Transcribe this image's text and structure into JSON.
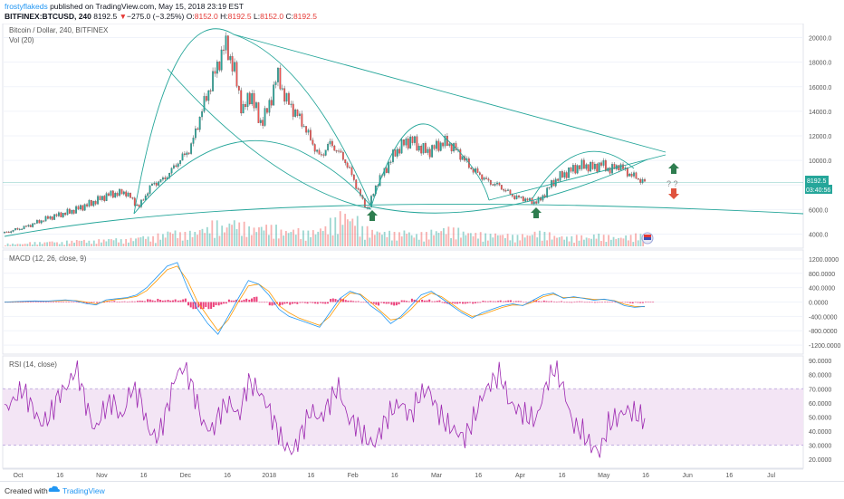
{
  "header": {
    "author": "frostyflakeds",
    "published": " published on TradingView.com, May 15, 2018 23:19 EST",
    "symbol": "BITFINEX:BTCUSD, 240",
    "price": "8192.5",
    "change_arrow": "▼",
    "change": "−275.0 (−3.25%)",
    "ohlc": [
      {
        "label": "O:",
        "value": "8152.0"
      },
      {
        "label": "H:",
        "value": "8192.5"
      },
      {
        "label": "L:",
        "value": "8152.0"
      },
      {
        "label": "C:",
        "value": "8192.5"
      }
    ]
  },
  "footer": {
    "created_with": "Created with",
    "brand": "TradingView"
  },
  "colors": {
    "up": "#26a69a",
    "down": "#ef5350",
    "trendline": "#26a69a",
    "macd": "#2196f3",
    "signal": "#ff9800",
    "histogram": "#e91e63",
    "rsi": "#9c27b0",
    "rsi_band": "#f3e5f5",
    "arrow_up": "#2e7d4f",
    "arrow_down": "#e0533e"
  },
  "chart_data": [
    {
      "type": "candlestick",
      "title": "Bitcoin / Dollar, 240, BITFINEX",
      "indicator": "Vol (20)",
      "ylim": [
        3000,
        21000
      ],
      "y_ticks": [
        "4000.0",
        "6000.0",
        "8000.0",
        "10000.0",
        "12000.0",
        "14000.0",
        "16000.0",
        "18000.0",
        "20000.0"
      ],
      "last_price": "8192.5",
      "countdown": "03:40:56",
      "annotation": "? ?",
      "price_path": [
        {
          "t": 0,
          "p": 4100
        },
        {
          "t": 5,
          "p": 4600
        },
        {
          "t": 10,
          "p": 5300
        },
        {
          "t": 15,
          "p": 5800
        },
        {
          "t": 20,
          "p": 6500
        },
        {
          "t": 24,
          "p": 7200
        },
        {
          "t": 28,
          "p": 7400
        },
        {
          "t": 31,
          "p": 6200
        },
        {
          "t": 34,
          "p": 8000
        },
        {
          "t": 37,
          "p": 8500
        },
        {
          "t": 40,
          "p": 9800
        },
        {
          "t": 43,
          "p": 11000
        },
        {
          "t": 46,
          "p": 14500
        },
        {
          "t": 48,
          "p": 16500
        },
        {
          "t": 51,
          "p": 19500
        },
        {
          "t": 53,
          "p": 17500
        },
        {
          "t": 55,
          "p": 14000
        },
        {
          "t": 57,
          "p": 15500
        },
        {
          "t": 59,
          "p": 13000
        },
        {
          "t": 61,
          "p": 14200
        },
        {
          "t": 63,
          "p": 17000
        },
        {
          "t": 65,
          "p": 15000
        },
        {
          "t": 67,
          "p": 14000
        },
        {
          "t": 69,
          "p": 13000
        },
        {
          "t": 71,
          "p": 11500
        },
        {
          "t": 73,
          "p": 10200
        },
        {
          "t": 75,
          "p": 11400
        },
        {
          "t": 77,
          "p": 10800
        },
        {
          "t": 79,
          "p": 9800
        },
        {
          "t": 81,
          "p": 8200
        },
        {
          "t": 83,
          "p": 6500
        },
        {
          "t": 84,
          "p": 6000
        },
        {
          "t": 86,
          "p": 8100
        },
        {
          "t": 88,
          "p": 9200
        },
        {
          "t": 90,
          "p": 10500
        },
        {
          "t": 92,
          "p": 11300
        },
        {
          "t": 94,
          "p": 11700
        },
        {
          "t": 96,
          "p": 11000
        },
        {
          "t": 98,
          "p": 10700
        },
        {
          "t": 100,
          "p": 11200
        },
        {
          "t": 102,
          "p": 11500
        },
        {
          "t": 104,
          "p": 11000
        },
        {
          "t": 106,
          "p": 10200
        },
        {
          "t": 108,
          "p": 9300
        },
        {
          "t": 110,
          "p": 8800
        },
        {
          "t": 112,
          "p": 8200
        },
        {
          "t": 114,
          "p": 8000
        },
        {
          "t": 116,
          "p": 7500
        },
        {
          "t": 118,
          "p": 7000
        },
        {
          "t": 120,
          "p": 6900
        },
        {
          "t": 122,
          "p": 6600
        },
        {
          "t": 124,
          "p": 6800
        },
        {
          "t": 126,
          "p": 7900
        },
        {
          "t": 128,
          "p": 8600
        },
        {
          "t": 130,
          "p": 9000
        },
        {
          "t": 132,
          "p": 9400
        },
        {
          "t": 134,
          "p": 9600
        },
        {
          "t": 136,
          "p": 9400
        },
        {
          "t": 138,
          "p": 9700
        },
        {
          "t": 140,
          "p": 9200
        },
        {
          "t": 142,
          "p": 9600
        },
        {
          "t": 144,
          "p": 9000
        },
        {
          "t": 146,
          "p": 8600
        },
        {
          "t": 148,
          "p": 8192.5
        }
      ],
      "volume_profile": [
        2,
        2,
        3,
        3,
        4,
        3,
        4,
        5,
        4,
        5,
        6,
        5,
        6,
        8,
        7,
        9,
        12,
        10,
        11,
        14,
        18,
        15,
        20,
        17,
        14,
        16,
        15,
        12,
        13,
        11,
        12,
        15,
        20,
        25,
        22,
        14,
        12,
        11,
        10,
        12,
        9,
        10,
        12,
        14,
        13,
        11,
        10,
        9,
        10,
        9,
        8,
        9,
        11,
        10,
        8,
        7,
        8,
        7,
        9,
        8,
        7,
        8,
        9,
        10
      ]
    },
    {
      "type": "line",
      "title": "MACD (12, 26, close, 9)",
      "ylim": [
        -1400,
        1400
      ],
      "y_ticks": [
        "1200.0000",
        "800.0000",
        "400.0000",
        "0.0000",
        "-400.0000",
        "-800.0000",
        "-1200.0000"
      ],
      "series_macd": [
        0,
        10,
        20,
        30,
        20,
        40,
        60,
        30,
        -40,
        -80,
        60,
        90,
        120,
        200,
        400,
        700,
        1000,
        1100,
        400,
        -200,
        -600,
        -900,
        -400,
        100,
        600,
        500,
        200,
        -200,
        -400,
        -500,
        -600,
        -700,
        -300,
        100,
        300,
        200,
        -100,
        -300,
        -600,
        -400,
        -100,
        200,
        300,
        100,
        -100,
        -300,
        -450,
        -300,
        -200,
        -100,
        -50,
        -100,
        50,
        200,
        250,
        100,
        150,
        100,
        50,
        80,
        30,
        -100,
        -150,
        -120
      ],
      "series_signal": [
        0,
        5,
        15,
        25,
        25,
        30,
        45,
        40,
        0,
        -50,
        20,
        70,
        100,
        160,
        320,
        600,
        900,
        1000,
        600,
        0,
        -400,
        -800,
        -500,
        0,
        450,
        500,
        300,
        -100,
        -300,
        -450,
        -550,
        -650,
        -400,
        0,
        250,
        220,
        0,
        -250,
        -500,
        -450,
        -200,
        100,
        250,
        150,
        -50,
        -250,
        -400,
        -350,
        -250,
        -150,
        -80,
        -90,
        0,
        150,
        220,
        120,
        130,
        110,
        70,
        70,
        40,
        -60,
        -120,
        -130
      ]
    },
    {
      "type": "line",
      "title": "RSI (14, close)",
      "ylim": [
        15,
        92
      ],
      "band": [
        30,
        70
      ],
      "y_ticks": [
        "90.0000",
        "80.0000",
        "70.0000",
        "60.0000",
        "50.0000",
        "40.0000",
        "30.0000",
        "20.0000"
      ],
      "series": [
        55,
        62,
        70,
        58,
        45,
        50,
        66,
        72,
        85,
        60,
        40,
        55,
        62,
        48,
        70,
        65,
        40,
        35,
        55,
        80,
        85,
        68,
        45,
        40,
        55,
        60,
        50,
        75,
        70,
        60,
        45,
        30,
        25,
        40,
        55,
        48,
        60,
        72,
        50,
        45,
        35,
        30,
        45,
        55,
        60,
        50,
        65,
        70,
        55,
        45,
        40,
        35,
        48,
        65,
        75,
        80,
        60,
        55,
        50,
        48,
        72,
        85,
        70,
        45,
        40,
        30,
        25,
        45,
        50,
        55,
        52,
        48
      ]
    }
  ],
  "x_axis": {
    "ticks": [
      "Oct",
      "16",
      "Nov",
      "16",
      "Dec",
      "16",
      "2018",
      "16",
      "Feb",
      "16",
      "Mar",
      "16",
      "Apr",
      "16",
      "May",
      "16",
      "Jun",
      "16",
      "Jul"
    ]
  }
}
